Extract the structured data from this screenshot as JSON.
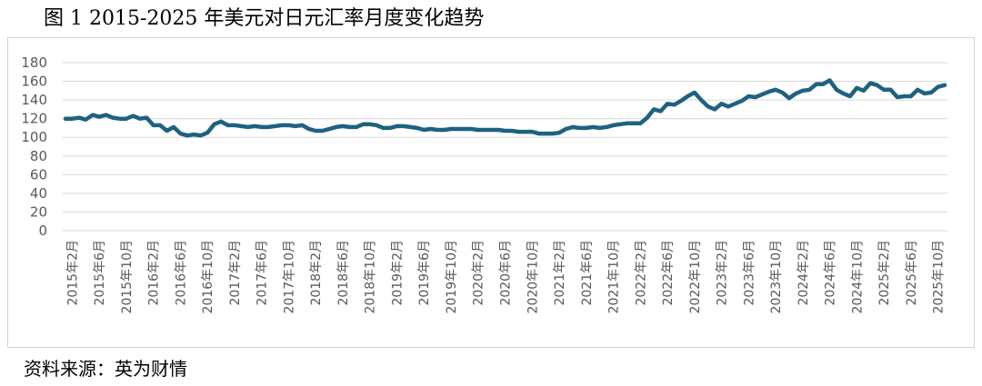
{
  "title": "图 1 2015-2025 年美元对日元汇率月度变化趋势",
  "source": "资料来源：英为财情",
  "colors": {
    "line": "#1f6180",
    "grid": "#d9d9d9",
    "tick_text": "#595959"
  },
  "chart_data": {
    "type": "line",
    "title": "",
    "xlabel": "",
    "ylabel": "",
    "ylim": [
      0,
      180
    ],
    "yticks": [
      0,
      20,
      40,
      60,
      80,
      100,
      120,
      140,
      160,
      180
    ],
    "grid": true,
    "legend": "none",
    "x_tick_labels": [
      "2015年2月",
      "2015年6月",
      "2015年10月",
      "2016年2月",
      "2016年6月",
      "2016年10月",
      "2017年2月",
      "2017年6月",
      "2017年10月",
      "2018年2月",
      "2018年6月",
      "2018年10月",
      "2019年2月",
      "2019年6月",
      "2019年10月",
      "2020年2月",
      "2020年6月",
      "2020年10月",
      "2021年2月",
      "2021年6月",
      "2021年10月",
      "2022年2月",
      "2022年6月",
      "2022年10月",
      "2023年2月",
      "2023年6月",
      "2023年10月",
      "2024年2月",
      "2024年6月",
      "2024年10月",
      "2025年2月",
      "2025年6月",
      "2025年10月"
    ],
    "x": [
      "2015年1月",
      "2015年2月",
      "2015年3月",
      "2015年4月",
      "2015年5月",
      "2015年6月",
      "2015年7月",
      "2015年8月",
      "2015年9月",
      "2015年10月",
      "2015年11月",
      "2015年12月",
      "2016年1月",
      "2016年2月",
      "2016年3月",
      "2016年4月",
      "2016年5月",
      "2016年6月",
      "2016年7月",
      "2016年8月",
      "2016年9月",
      "2016年10月",
      "2016年11月",
      "2016年12月",
      "2017年1月",
      "2017年2月",
      "2017年3月",
      "2017年4月",
      "2017年5月",
      "2017年6月",
      "2017年7月",
      "2017年8月",
      "2017年9月",
      "2017年10月",
      "2017年11月",
      "2017年12月",
      "2018年1月",
      "2018年2月",
      "2018年3月",
      "2018年4月",
      "2018年5月",
      "2018年6月",
      "2018年7月",
      "2018年8月",
      "2018年9月",
      "2018年10月",
      "2018年11月",
      "2018年12月",
      "2019年1月",
      "2019年2月",
      "2019年3月",
      "2019年4月",
      "2019年5月",
      "2019年6月",
      "2019年7月",
      "2019年8月",
      "2019年9月",
      "2019年10月",
      "2019年11月",
      "2019年12月",
      "2020年1月",
      "2020年2月",
      "2020年3月",
      "2020年4月",
      "2020年5月",
      "2020年6月",
      "2020年7月",
      "2020年8月",
      "2020年9月",
      "2020年10月",
      "2020年11月",
      "2020年12月",
      "2021年1月",
      "2021年2月",
      "2021年3月",
      "2021年4月",
      "2021年5月",
      "2021年6月",
      "2021年7月",
      "2021年8月",
      "2021年9月",
      "2021年10月",
      "2021年11月",
      "2021年12月",
      "2022年1月",
      "2022年2月",
      "2022年3月",
      "2022年4月",
      "2022年5月",
      "2022年6月",
      "2022年7月",
      "2022年8月",
      "2022年9月",
      "2022年10月",
      "2022年11月",
      "2022年12月",
      "2023年1月",
      "2023年2月",
      "2023年3月",
      "2023年4月",
      "2023年5月",
      "2023年6月",
      "2023年7月",
      "2023年8月",
      "2023年9月",
      "2023年10月",
      "2023年11月",
      "2023年12月",
      "2024年1月",
      "2024年2月",
      "2024年3月",
      "2024年4月",
      "2024年5月",
      "2024年6月",
      "2024年7月",
      "2024年8月",
      "2024年9月",
      "2024年10月",
      "2024年11月",
      "2024年12月",
      "2025年1月",
      "2025年2月",
      "2025年3月",
      "2025年4月",
      "2025年5月",
      "2025年6月",
      "2025年7月",
      "2025年8月",
      "2025年9月",
      "2025年10月",
      "2025年11月"
    ],
    "series": [
      {
        "values": [
          120,
          120,
          121,
          119,
          124,
          122,
          124,
          121,
          120,
          120,
          123,
          120,
          121,
          113,
          113,
          107,
          111,
          104,
          102,
          103,
          102,
          105,
          114,
          117,
          113,
          113,
          112,
          111,
          112,
          111,
          111,
          112,
          113,
          113,
          112,
          113,
          109,
          107,
          107,
          109,
          111,
          112,
          111,
          111,
          114,
          114,
          113,
          110,
          110,
          112,
          112,
          111,
          110,
          108,
          109,
          108,
          108,
          109,
          109,
          109,
          109,
          108,
          108,
          108,
          108,
          107,
          107,
          106,
          106,
          106,
          104,
          104,
          104,
          105,
          109,
          111,
          110,
          110,
          111,
          110,
          111,
          113,
          114,
          115,
          115,
          115,
          121,
          130,
          128,
          136,
          135,
          139,
          144,
          148,
          140,
          133,
          130,
          136,
          133,
          136,
          139,
          144,
          143,
          146,
          149,
          151,
          148,
          142,
          147,
          150,
          151,
          157,
          157,
          161,
          151,
          147,
          144,
          153,
          150,
          158,
          156,
          151,
          151,
          143,
          144,
          144,
          151,
          147,
          148,
          154,
          156
        ]
      }
    ]
  }
}
